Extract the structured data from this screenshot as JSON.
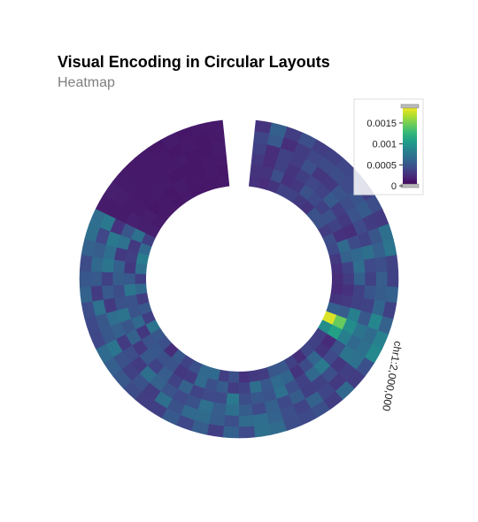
{
  "chart_data": {
    "type": "heatmap",
    "layout": "circular",
    "title": "Visual Encoding in Circular Layouts",
    "subtitle": "Heatmap",
    "axis_labels": [
      "chr1:2,000,000"
    ],
    "color_scale": {
      "name": "viridis",
      "domain": [
        0,
        0.0019
      ],
      "legend_ticks": [
        {
          "value": 0.0015,
          "label": "0.0015"
        },
        {
          "value": 0.001,
          "label": "0.001"
        },
        {
          "value": 0.0005,
          "label": "0.0005"
        },
        {
          "value": 0,
          "label": "0"
        }
      ],
      "stops": [
        "#440154",
        "#482878",
        "#3e4989",
        "#31688e",
        "#26828e",
        "#1f9e89",
        "#35b779",
        "#6ece58",
        "#b5de2b",
        "#fde725"
      ]
    },
    "rows": 6,
    "columns": 60,
    "values": [
      [
        0.00027,
        0.00024,
        0.00029,
        0.00038,
        0.00038,
        0.00032,
        0.00029,
        0.00048,
        0.00048,
        0.00034,
        0.00045,
        0.00042,
        0.00032,
        0.00027,
        0.00024,
        0.00023,
        0.00029,
        0.00058,
        0.0018,
        0.00093,
        0.00035,
        0.00037,
        0.0004,
        0.00025,
        0.00037,
        0.00052,
        0.00052,
        0.00034,
        0.00032,
        0.00027,
        0.00047,
        0.00035,
        0.00065,
        0.00064,
        0.00047,
        0.00038,
        0.00052,
        0.00024,
        0.00047,
        0.00052,
        0.00073,
        0.00036,
        0.00052,
        0.00034,
        0.00063,
        0.00036,
        0.0007,
        0.00079,
        0.00064,
        0.00036,
        0.00016,
        0.00014,
        0.00013,
        0.00013,
        0.00012,
        0.00013,
        0.00012,
        0.00012,
        0.00012,
        0.00013
      ],
      [
        0.00028,
        0.00029,
        0.00046,
        0.00027,
        0.00031,
        0.00048,
        0.00042,
        0.00037,
        0.00048,
        0.00038,
        0.00027,
        0.00066,
        0.00059,
        0.00038,
        0.00034,
        0.00027,
        0.00032,
        0.00056,
        0.00145,
        0.00108,
        0.00023,
        0.00029,
        0.00062,
        0.00044,
        0.00029,
        0.00061,
        0.00065,
        0.00052,
        0.00069,
        0.00038,
        0.00034,
        0.00055,
        0.00047,
        0.00065,
        0.00033,
        0.00031,
        0.00049,
        0.00048,
        0.00052,
        0.00049,
        0.00031,
        0.00064,
        0.00049,
        0.00049,
        0.00075,
        0.00053,
        0.00031,
        0.00035,
        0.00032,
        0.00071,
        0.00016,
        0.00015,
        0.00012,
        0.00013,
        0.00012,
        0.00014,
        0.00012,
        0.00012,
        0.00013,
        0.00012
      ],
      [
        0.00032,
        0.00024,
        0.00037,
        0.00029,
        0.00036,
        0.00041,
        0.00038,
        0.00054,
        0.00035,
        0.00032,
        0.00025,
        0.00044,
        0.00063,
        0.00068,
        0.00058,
        0.00037,
        0.00037,
        0.00082,
        0.00093,
        0.00082,
        0.00048,
        0.00043,
        0.00077,
        0.00064,
        0.00037,
        0.00047,
        0.0007,
        0.00049,
        0.00052,
        0.00045,
        0.00077,
        0.00044,
        0.00043,
        0.00039,
        0.00059,
        0.00038,
        0.00056,
        0.00038,
        0.00052,
        0.00032,
        0.00059,
        0.00051,
        0.00072,
        0.00048,
        0.00045,
        0.00055,
        0.00058,
        0.00032,
        0.00071,
        0.00051,
        0.00017,
        0.00014,
        0.00013,
        0.00014,
        0.00014,
        0.00012,
        0.00012,
        0.00012,
        0.00013,
        0.00013
      ],
      [
        0.00037,
        0.00024,
        0.00037,
        0.00034,
        0.00047,
        0.0003,
        0.00032,
        0.00049,
        0.00045,
        0.00049,
        0.00043,
        0.00038,
        0.00069,
        0.00043,
        0.00037,
        0.0005,
        0.00038,
        0.00052,
        0.00073,
        0.00064,
        0.00073,
        0.00031,
        0.00046,
        0.00037,
        0.00036,
        0.00055,
        0.00042,
        0.00058,
        0.00043,
        0.00055,
        0.00069,
        0.00056,
        0.0007,
        0.00048,
        0.00043,
        0.00049,
        0.00059,
        0.00069,
        0.00033,
        0.00045,
        0.00033,
        0.00057,
        0.00068,
        0.00032,
        0.00053,
        0.00037,
        0.00074,
        0.00067,
        0.00076,
        0.00027,
        0.00014,
        0.00014,
        0.00013,
        0.00013,
        0.00013,
        0.00013,
        0.00014,
        0.00012,
        0.00012,
        0.00014
      ],
      [
        0.0004,
        0.00053,
        0.00025,
        0.00034,
        0.00041,
        0.00044,
        0.00045,
        0.00043,
        0.00049,
        0.00054,
        0.00034,
        0.00051,
        0.00057,
        0.00046,
        0.00056,
        0.00055,
        0.00061,
        0.00088,
        0.00066,
        0.00069,
        0.00071,
        0.00035,
        0.00032,
        0.0004,
        0.00059,
        0.00039,
        0.00046,
        0.0006,
        0.00068,
        0.00066,
        0.00046,
        0.00055,
        0.00066,
        0.00064,
        0.00048,
        0.00069,
        0.00034,
        0.00048,
        0.00037,
        0.00048,
        0.00074,
        0.00052,
        0.00052,
        0.00071,
        0.00033,
        0.00053,
        0.00063,
        0.00056,
        0.00041,
        0.00077,
        0.00014,
        0.00015,
        0.00014,
        0.00013,
        0.00013,
        0.00013,
        0.00012,
        0.00013,
        0.00012,
        0.00013
      ],
      [
        0.00028,
        0.00058,
        0.00034,
        0.00046,
        0.00035,
        0.00037,
        0.00041,
        0.00042,
        0.00036,
        0.00045,
        0.00032,
        0.00069,
        0.00074,
        0.00038,
        0.00037,
        0.00058,
        0.00037,
        0.00059,
        0.00083,
        0.00089,
        0.00047,
        0.00034,
        0.00064,
        0.00034,
        0.00047,
        0.00042,
        0.00045,
        0.00066,
        0.00069,
        0.00043,
        0.00058,
        0.00035,
        0.00056,
        0.00041,
        0.00053,
        0.00036,
        0.00035,
        0.00044,
        0.00052,
        0.00057,
        0.00065,
        0.00041,
        0.00042,
        0.00045,
        0.0006,
        0.00052,
        0.00044,
        0.00059,
        0.00069,
        0.00068,
        0.00014,
        0.00016,
        0.00014,
        0.00013,
        0.00013,
        0.00012,
        0.00014,
        0.00012,
        0.00013,
        0.00013
      ]
    ]
  }
}
